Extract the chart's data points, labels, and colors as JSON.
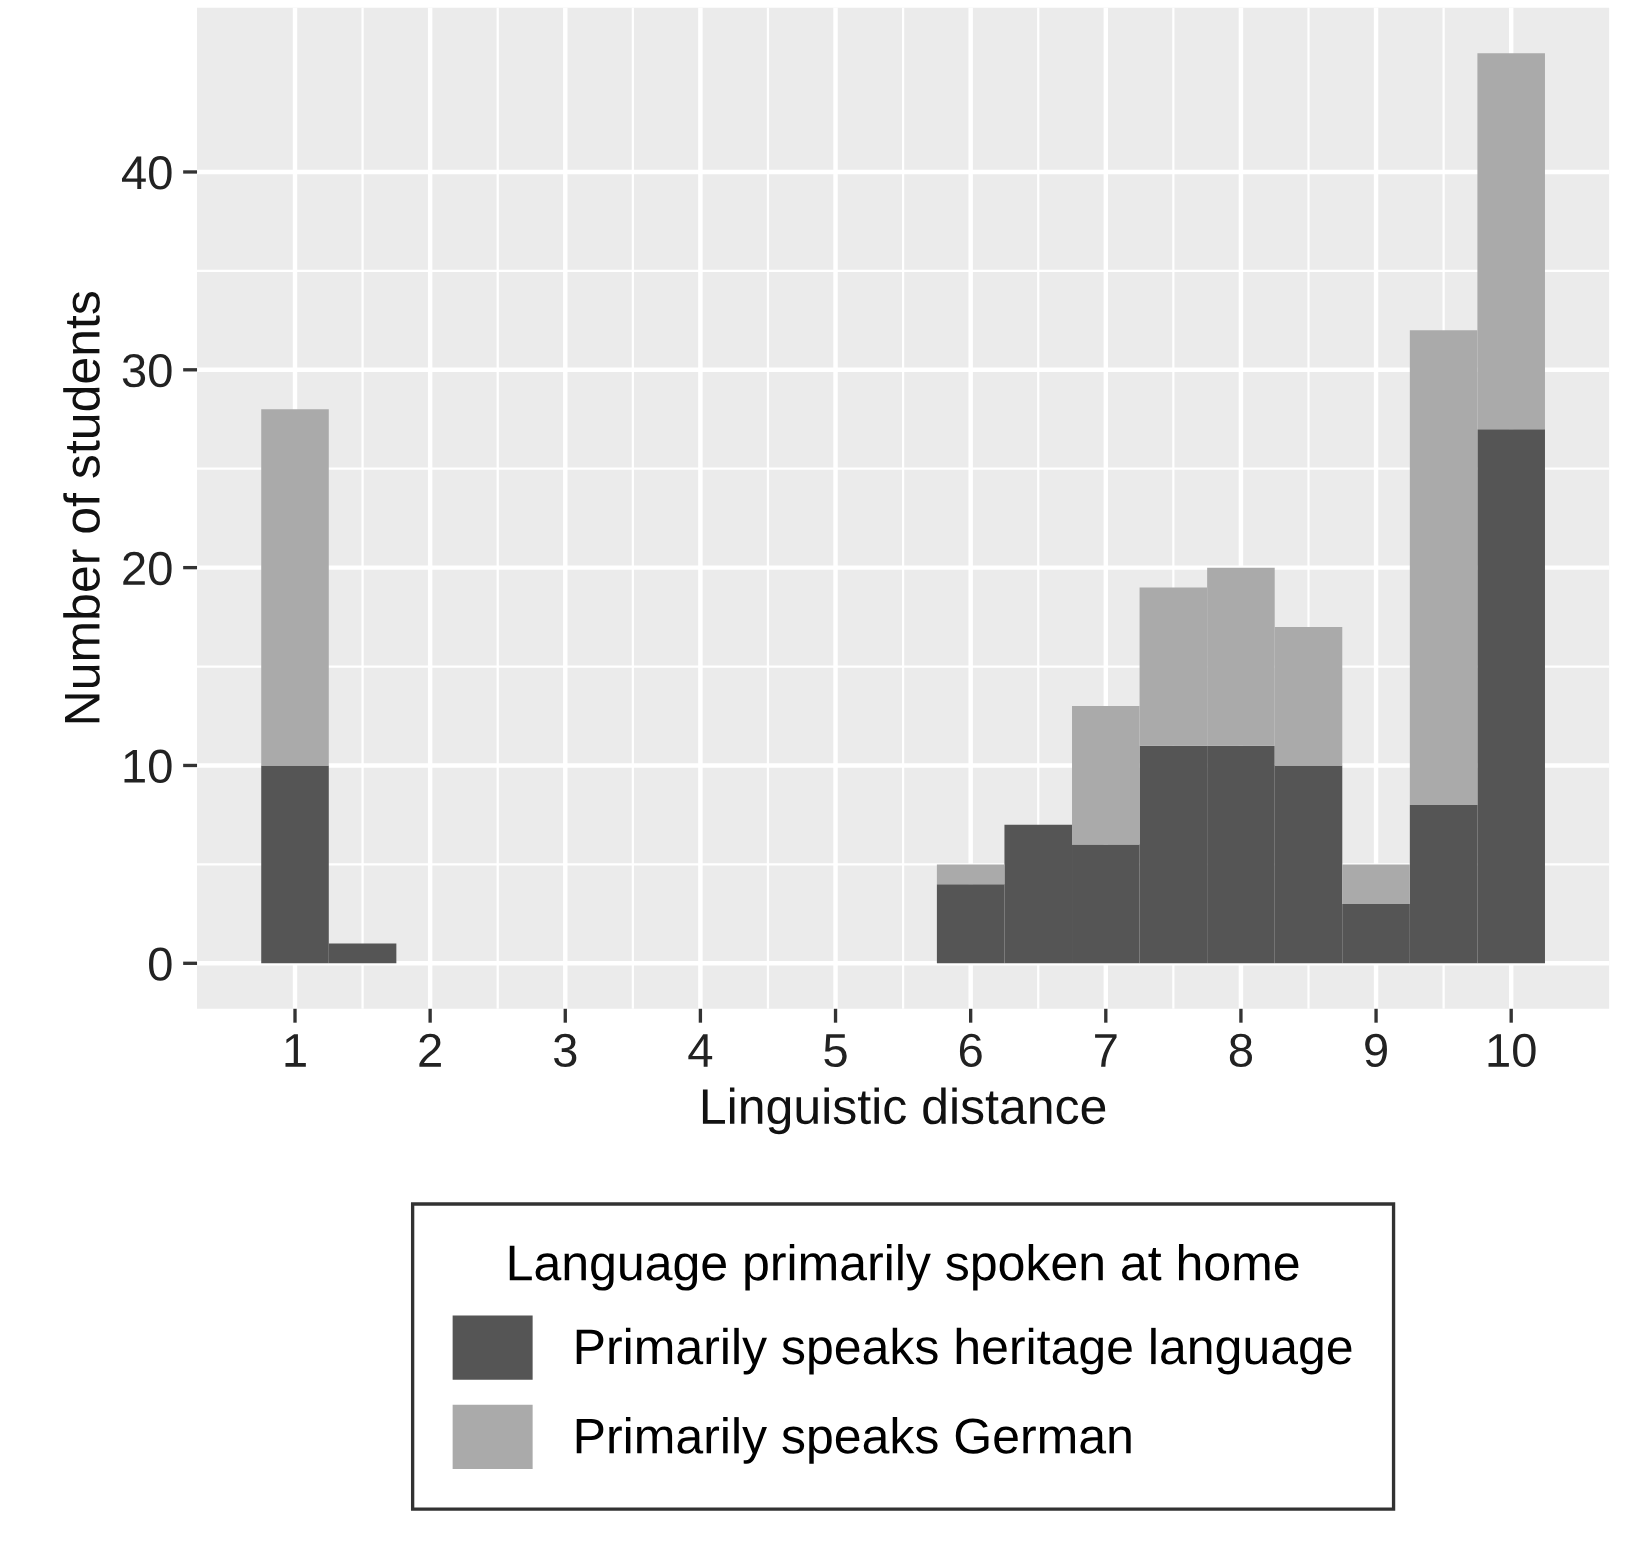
{
  "chart_data": {
    "type": "bar",
    "stacked": true,
    "xlabel": "Linguistic distance",
    "ylabel": "Number of students",
    "legend_title": "Language primarily spoken at home",
    "x": [
      1,
      1.5,
      2,
      2.5,
      3,
      3.5,
      4,
      4.5,
      5,
      5.5,
      6,
      6.5,
      7,
      7.5,
      8,
      8.5,
      9,
      9.5,
      10
    ],
    "series": [
      {
        "name": "Primarily speaks heritage language",
        "color": "#555555",
        "values": [
          10,
          1,
          0,
          0,
          0,
          0,
          0,
          0,
          0,
          0,
          4,
          7,
          6,
          11,
          11,
          10,
          3,
          8,
          27
        ]
      },
      {
        "name": "Primarily speaks German",
        "color": "#aaaaaa",
        "values": [
          18,
          0,
          0,
          0,
          0,
          0,
          0,
          0,
          0,
          0,
          1,
          0,
          7,
          8,
          9,
          7,
          2,
          24,
          19
        ]
      }
    ],
    "xlim": [
      0.275,
      10.725
    ],
    "xticks": [
      1,
      2,
      3,
      4,
      5,
      6,
      7,
      8,
      9,
      10
    ],
    "ylim": [
      -2.3,
      48.3
    ],
    "yticks": [
      0,
      10,
      20,
      30,
      40
    ],
    "grid": true,
    "legend": "bottom"
  }
}
